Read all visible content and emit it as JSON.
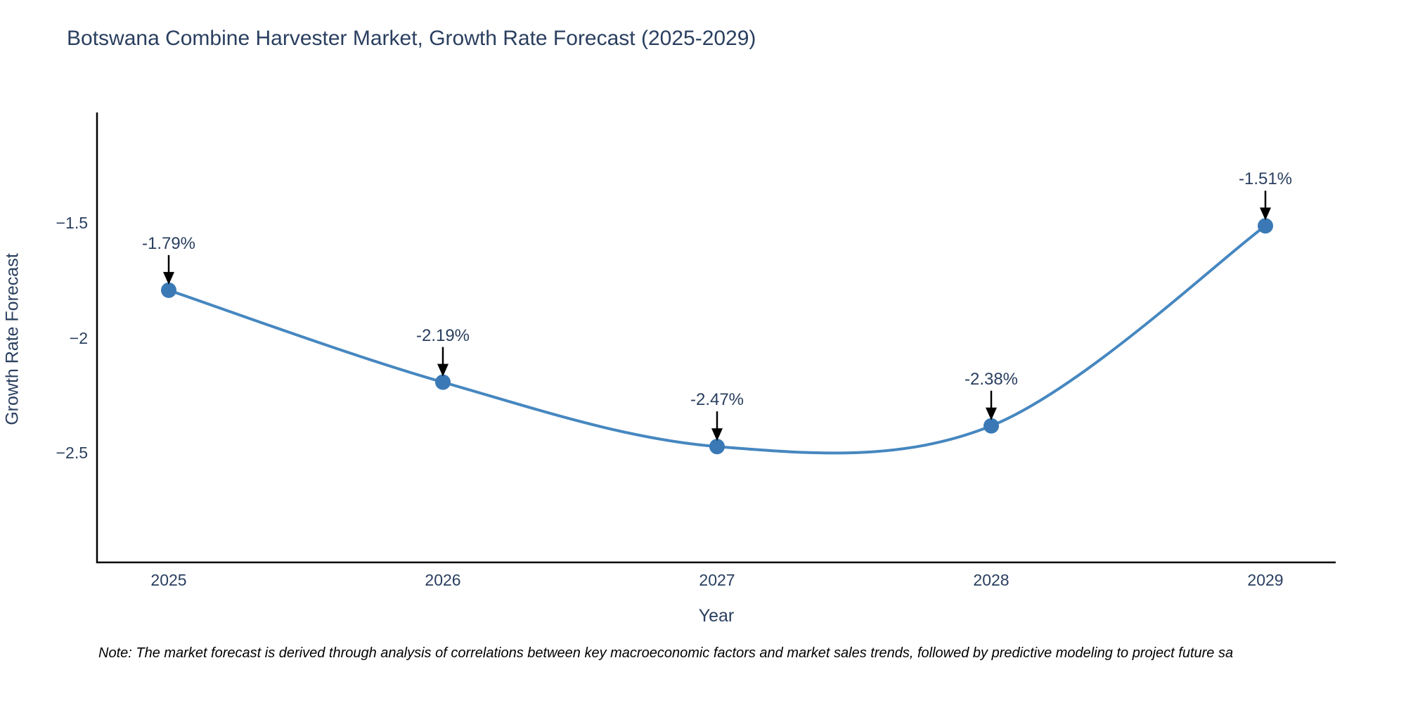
{
  "title": "Botswana Combine Harvester Market, Growth Rate Forecast (2025-2029)",
  "note": "Note: The market forecast is derived through analysis of correlations between key macroeconomic factors and market sales trends, followed by predictive modeling to project future sa",
  "chart_data": {
    "type": "line",
    "line_shape": "spline",
    "x": [
      2025,
      2026,
      2027,
      2028,
      2029
    ],
    "values": [
      -1.79,
      -2.19,
      -2.47,
      -2.38,
      -1.51
    ],
    "point_labels": [
      "-1.79%",
      "-2.19%",
      "-2.47%",
      "-2.38%",
      "-1.51%"
    ],
    "categories": [
      "2025",
      "2026",
      "2027",
      "2028",
      "2029"
    ],
    "title": "Botswana Combine Harvester Market, Growth Rate Forecast (2025-2029)",
    "xlabel": "Year",
    "ylabel": "Growth Rate Forecast",
    "yticks": [
      -1.5,
      -2.0,
      -2.5
    ],
    "ytick_labels": [
      "−1.5",
      "−2",
      "−2.5"
    ],
    "ylim": [
      -2.97,
      -1.02
    ],
    "grid": false,
    "legend": "none",
    "line_color": "#4687c0",
    "marker_color": "#3a79b5",
    "annotation_arrow_color": "#000000",
    "title_color": "#2a3f5f",
    "tick_color": "#2a3f5f",
    "axis_line_color": "#000000"
  }
}
